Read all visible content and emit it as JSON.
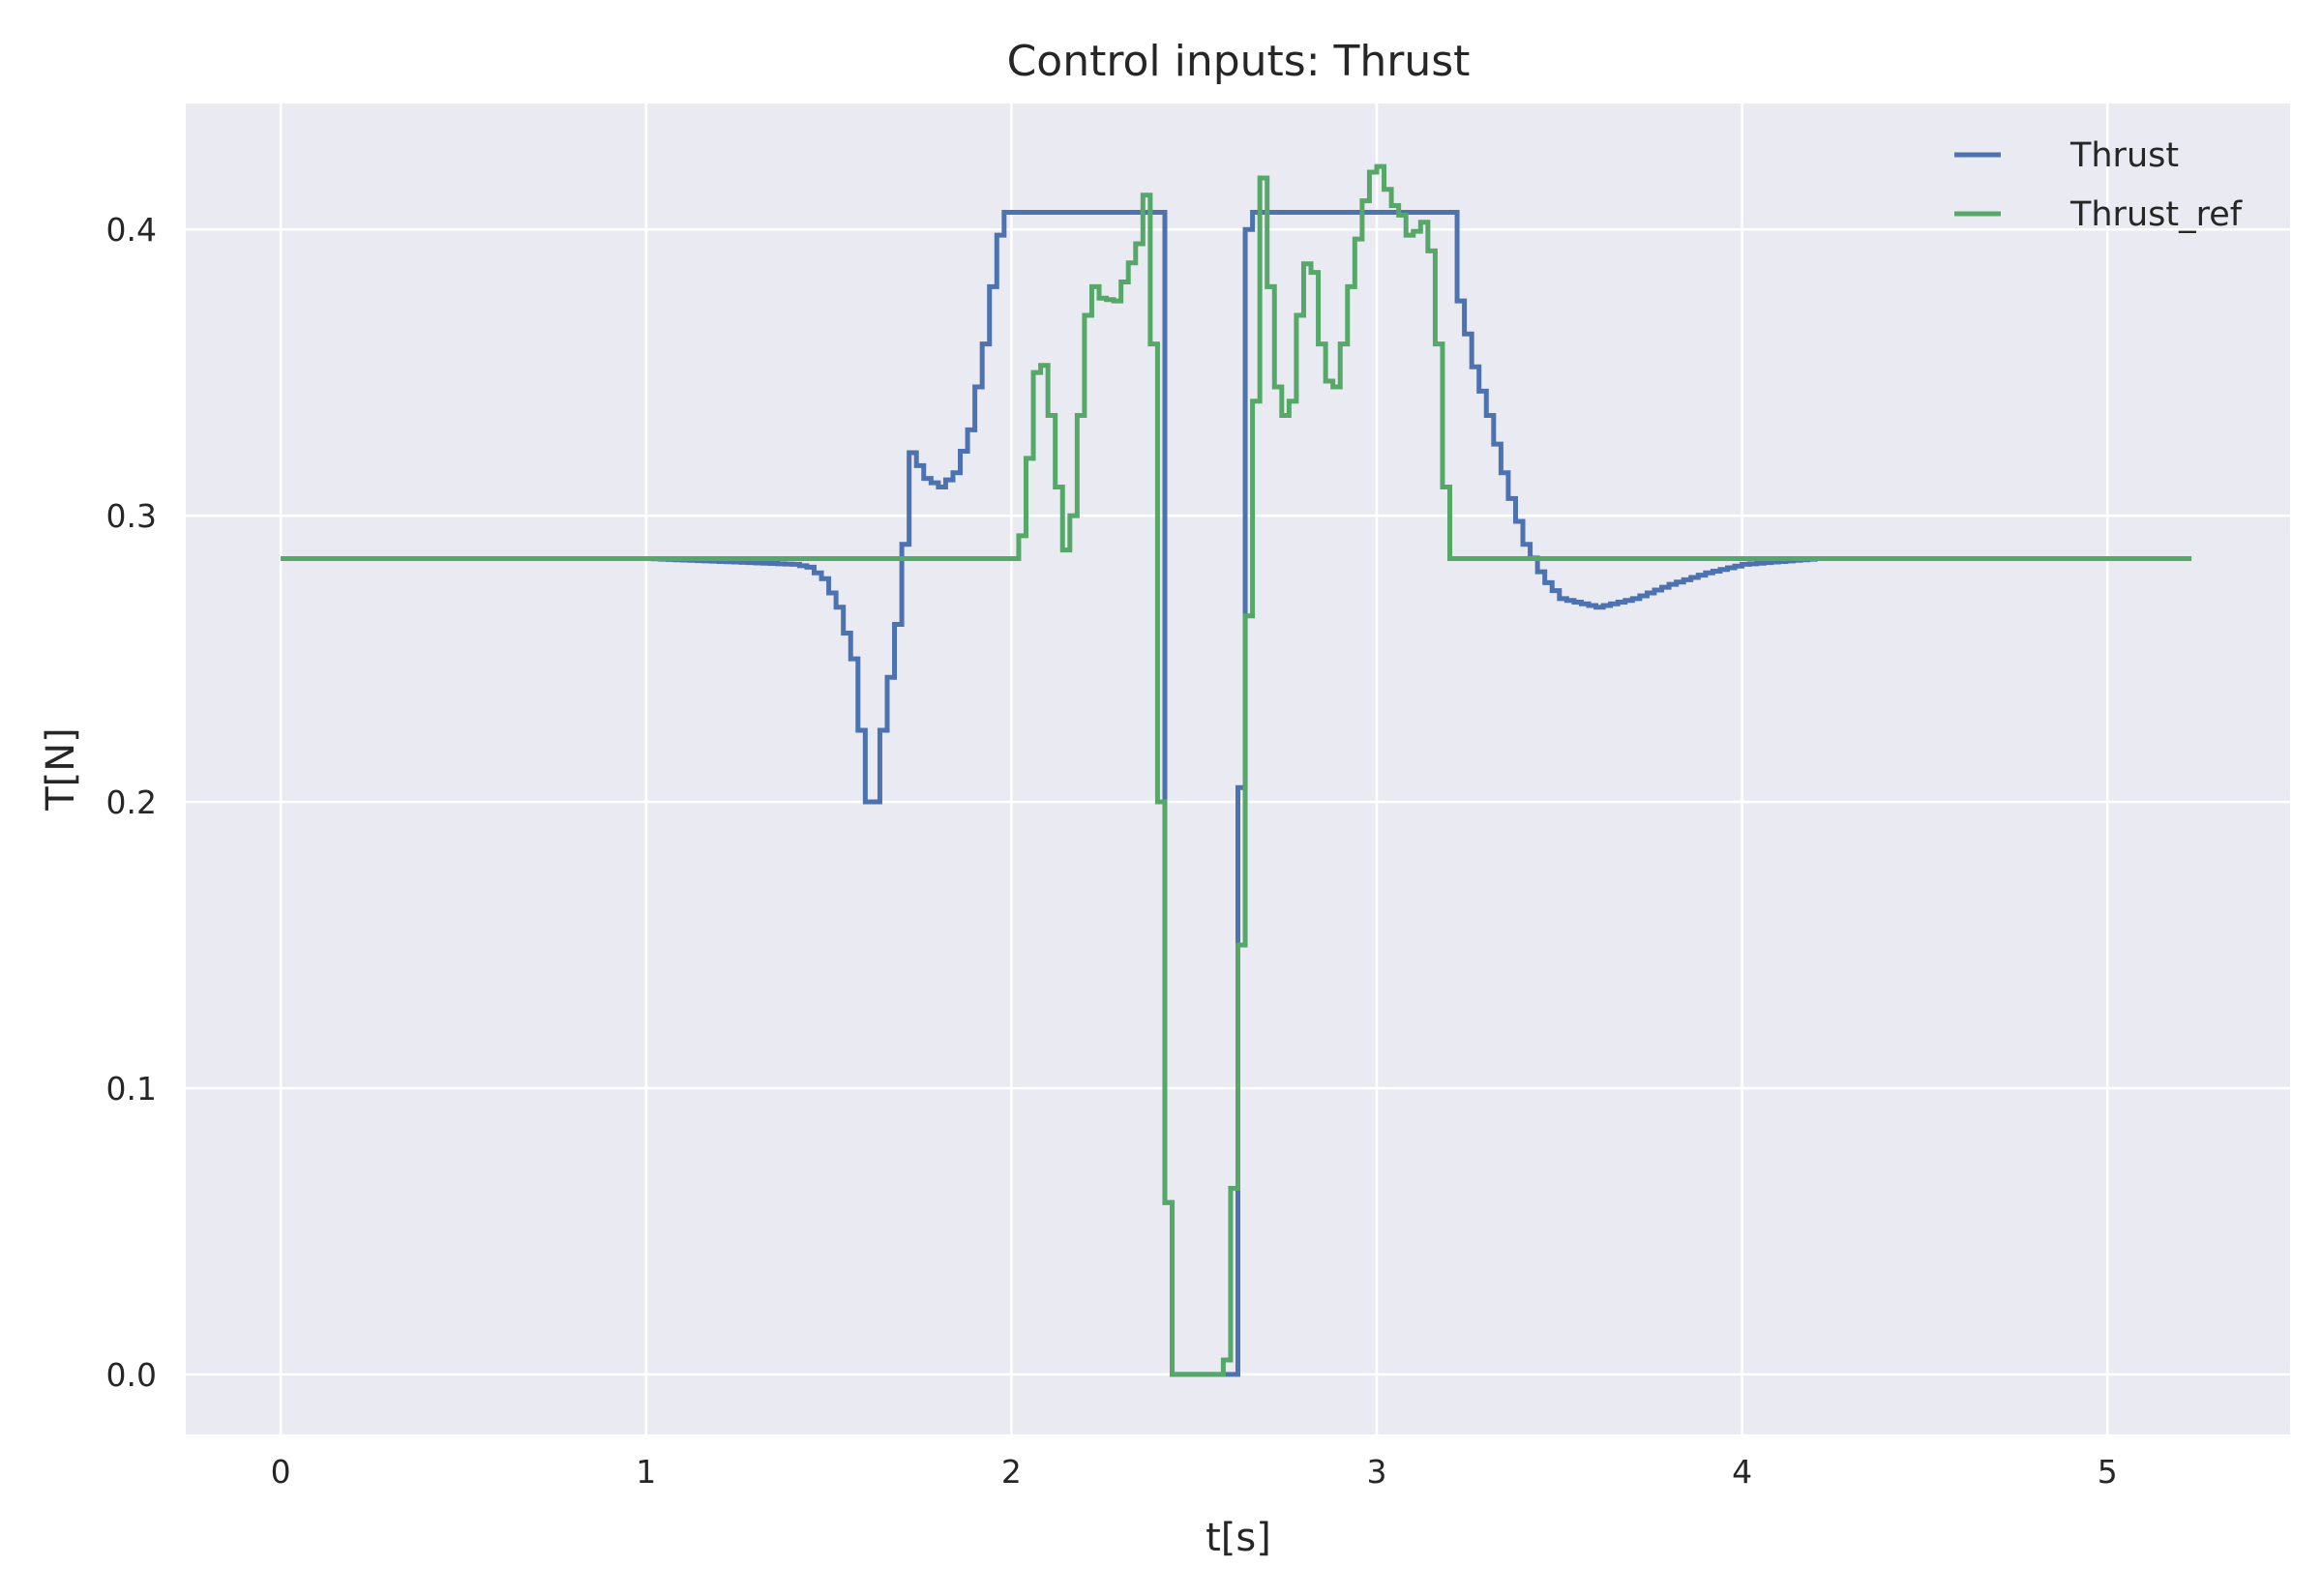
{
  "chart_data": {
    "type": "line",
    "title": "Control inputs: Thrust",
    "xlabel": "t[s]",
    "ylabel": "T[N]",
    "xlim": [
      -0.26,
      5.5
    ],
    "ylim": [
      -0.021,
      0.444
    ],
    "xticks": [
      0,
      1,
      2,
      3,
      4,
      5
    ],
    "yticks": [
      0.0,
      0.1,
      0.2,
      0.3,
      0.4
    ],
    "xtick_labels": [
      "0",
      "1",
      "2",
      "3",
      "4",
      "5"
    ],
    "ytick_labels": [
      "0.0",
      "0.1",
      "0.2",
      "0.3",
      "0.4"
    ],
    "grid": true,
    "legend_position": "top-right",
    "step_size": 0.02,
    "series": [
      {
        "name": "Thrust",
        "color": "#4c72b0",
        "points": [
          [
            0.0,
            0.285
          ],
          [
            1.0,
            0.285
          ],
          [
            1.2,
            0.284
          ],
          [
            1.4,
            0.283
          ],
          [
            1.44,
            0.282
          ],
          [
            1.48,
            0.278
          ],
          [
            1.52,
            0.268
          ],
          [
            1.56,
            0.25
          ],
          [
            1.6,
            0.2
          ],
          [
            1.62,
            0.2
          ],
          [
            1.64,
            0.225
          ],
          [
            1.68,
            0.262
          ],
          [
            1.7,
            0.29
          ],
          [
            1.72,
            0.322
          ],
          [
            1.76,
            0.313
          ],
          [
            1.8,
            0.31
          ],
          [
            1.84,
            0.315
          ],
          [
            1.88,
            0.33
          ],
          [
            1.92,
            0.36
          ],
          [
            1.95,
            0.39
          ],
          [
            1.97,
            0.406
          ],
          [
            2.4,
            0.406
          ],
          [
            2.41,
            0.287
          ],
          [
            2.42,
            0.06
          ],
          [
            2.43,
            0.012
          ],
          [
            2.44,
            0.0
          ],
          [
            2.6,
            0.0
          ],
          [
            2.61,
            0.052
          ],
          [
            2.62,
            0.205
          ],
          [
            2.63,
            0.265
          ],
          [
            2.64,
            0.4
          ],
          [
            2.65,
            0.406
          ],
          [
            3.2,
            0.406
          ],
          [
            3.22,
            0.375
          ],
          [
            3.26,
            0.352
          ],
          [
            3.3,
            0.335
          ],
          [
            3.35,
            0.31
          ],
          [
            3.4,
            0.29
          ],
          [
            3.45,
            0.278
          ],
          [
            3.5,
            0.271
          ],
          [
            3.6,
            0.268
          ],
          [
            3.7,
            0.271
          ],
          [
            3.8,
            0.276
          ],
          [
            3.9,
            0.28
          ],
          [
            4.0,
            0.283
          ],
          [
            4.2,
            0.285
          ],
          [
            4.4,
            0.285
          ],
          [
            4.7,
            0.285
          ],
          [
            5.23,
            0.285
          ]
        ]
      },
      {
        "name": "Thrust_ref",
        "color": "#55a868",
        "points": [
          [
            0.0,
            0.285
          ],
          [
            2.0,
            0.285
          ],
          [
            2.02,
            0.293
          ],
          [
            2.03,
            0.31
          ],
          [
            2.04,
            0.32
          ],
          [
            2.05,
            0.345
          ],
          [
            2.07,
            0.355
          ],
          [
            2.09,
            0.35
          ],
          [
            2.11,
            0.32
          ],
          [
            2.13,
            0.3
          ],
          [
            2.14,
            0.288
          ],
          [
            2.16,
            0.3
          ],
          [
            2.18,
            0.335
          ],
          [
            2.2,
            0.37
          ],
          [
            2.22,
            0.38
          ],
          [
            2.24,
            0.376
          ],
          [
            2.28,
            0.375
          ],
          [
            2.31,
            0.385
          ],
          [
            2.34,
            0.395
          ],
          [
            2.36,
            0.412
          ],
          [
            2.37,
            0.42
          ],
          [
            2.38,
            0.36
          ],
          [
            2.39,
            0.285
          ],
          [
            2.4,
            0.2
          ],
          [
            2.41,
            0.12
          ],
          [
            2.42,
            0.06
          ],
          [
            2.43,
            0.015
          ],
          [
            2.44,
            0.0
          ],
          [
            2.57,
            0.0
          ],
          [
            2.58,
            0.005
          ],
          [
            2.59,
            0.02
          ],
          [
            2.6,
            0.065
          ],
          [
            2.61,
            0.1
          ],
          [
            2.62,
            0.15
          ],
          [
            2.63,
            0.205
          ],
          [
            2.64,
            0.265
          ],
          [
            2.65,
            0.3
          ],
          [
            2.66,
            0.34
          ],
          [
            2.67,
            0.41
          ],
          [
            2.68,
            0.418
          ],
          [
            2.7,
            0.38
          ],
          [
            2.72,
            0.345
          ],
          [
            2.74,
            0.335
          ],
          [
            2.76,
            0.34
          ],
          [
            2.78,
            0.37
          ],
          [
            2.8,
            0.388
          ],
          [
            2.82,
            0.385
          ],
          [
            2.84,
            0.36
          ],
          [
            2.86,
            0.347
          ],
          [
            2.88,
            0.345
          ],
          [
            2.9,
            0.36
          ],
          [
            2.92,
            0.38
          ],
          [
            2.95,
            0.405
          ],
          [
            2.98,
            0.42
          ],
          [
            3.0,
            0.422
          ],
          [
            3.03,
            0.41
          ],
          [
            3.06,
            0.405
          ],
          [
            3.08,
            0.398
          ],
          [
            3.11,
            0.4
          ],
          [
            3.13,
            0.405
          ],
          [
            3.15,
            0.38
          ],
          [
            3.17,
            0.34
          ],
          [
            3.18,
            0.31
          ],
          [
            3.19,
            0.29
          ],
          [
            3.2,
            0.285
          ],
          [
            5.23,
            0.285
          ]
        ]
      }
    ]
  }
}
